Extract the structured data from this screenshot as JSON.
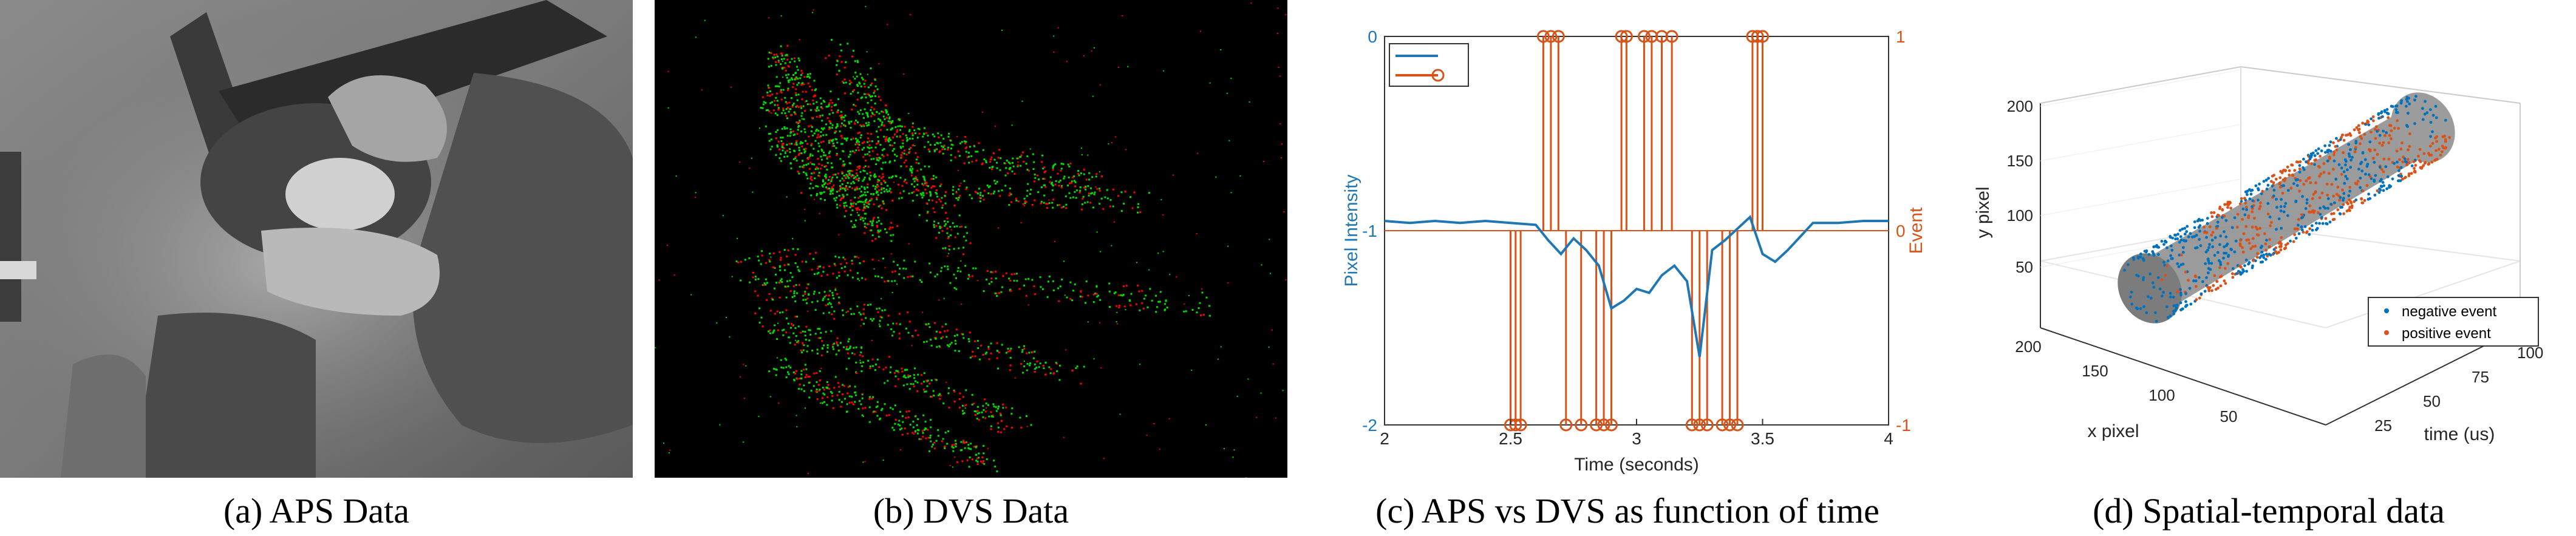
{
  "captions": {
    "a": "(a) APS Data",
    "b": "(b) DVS Data",
    "c": "(c) APS vs DVS as function of time",
    "d": "(d) Spatial-temporal data"
  },
  "colors": {
    "aps_line": "#1f77b4",
    "event": "#d95319",
    "negative_event": "#0072bd",
    "positive_event": "#d95319",
    "dvs_positive": "#00dd00",
    "dvs_negative": "#ff0000",
    "dvs_bg": "#000000"
  },
  "chart_data": [
    {
      "type": "line",
      "panel": "c",
      "title": "",
      "xlabel": "Time (seconds)",
      "ylabel_left": "Pixel Intensity",
      "ylabel_right": "Event",
      "xlim": [
        2,
        4
      ],
      "ylim_left": [
        -2,
        0
      ],
      "ylim_right": [
        -1,
        1
      ],
      "xticks": [
        "2",
        "2.5",
        "3",
        "3.5",
        "4"
      ],
      "yticks_left": [
        "0",
        "-1",
        "-2"
      ],
      "yticks_right": [
        "1",
        "0",
        "-1"
      ],
      "legend_position": "top-left",
      "series": [
        {
          "axis": "left",
          "x": [
            2.0,
            2.1,
            2.2,
            2.3,
            2.4,
            2.5,
            2.6,
            2.65,
            2.7,
            2.75,
            2.8,
            2.85,
            2.9,
            2.95,
            3.0,
            3.05,
            3.1,
            3.15,
            3.2,
            3.25,
            3.3,
            3.35,
            3.4,
            3.45,
            3.5,
            3.55,
            3.6,
            3.65,
            3.7,
            3.8,
            3.9,
            4.0
          ],
          "values": [
            -0.95,
            -0.96,
            -0.95,
            -0.96,
            -0.95,
            -0.96,
            -0.97,
            -1.05,
            -1.12,
            -1.04,
            -1.1,
            -1.18,
            -1.4,
            -1.36,
            -1.3,
            -1.32,
            -1.23,
            -1.18,
            -1.26,
            -1.65,
            -1.1,
            -1.05,
            -0.99,
            -0.93,
            -1.12,
            -1.16,
            -1.1,
            -1.03,
            -0.96,
            -0.96,
            -0.95,
            -0.95
          ]
        },
        {
          "axis": "right",
          "type": "stem",
          "x": [
            2.5,
            2.52,
            2.54,
            2.63,
            2.66,
            2.69,
            2.72,
            2.78,
            2.84,
            2.87,
            2.9,
            2.94,
            2.96,
            3.03,
            3.06,
            3.1,
            3.14,
            3.22,
            3.25,
            3.28,
            3.34,
            3.37,
            3.4,
            3.46,
            3.48,
            3.5
          ],
          "values": [
            -1,
            -1,
            -1,
            1,
            1,
            1,
            -1,
            -1,
            -1,
            -1,
            -1,
            1,
            1,
            1,
            1,
            1,
            1,
            -1,
            -1,
            -1,
            -1,
            -1,
            -1,
            1,
            1,
            1
          ]
        }
      ]
    },
    {
      "type": "scatter",
      "panel": "d",
      "title": "",
      "xlabel": "x pixel",
      "ylabel": "y pixel",
      "zlabel": "time (us)",
      "x_ticks": [
        "200",
        "150",
        "100",
        "50"
      ],
      "y_ticks": [
        "50",
        "100",
        "150",
        "200"
      ],
      "time_ticks": [
        "25",
        "50",
        "75",
        "100"
      ],
      "legend_position": "bottom-right",
      "series": [
        {
          "name": "negative event"
        },
        {
          "name": "positive event"
        }
      ]
    }
  ]
}
